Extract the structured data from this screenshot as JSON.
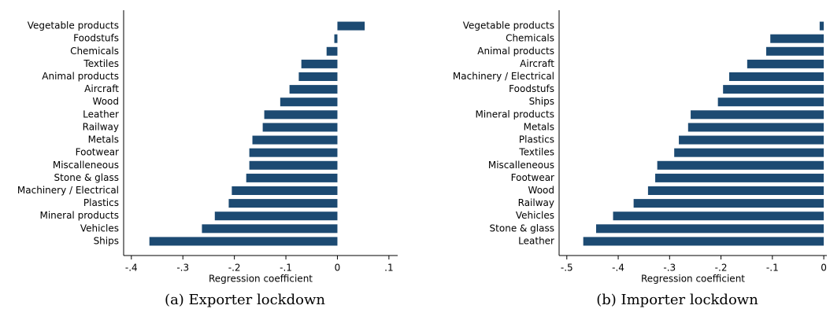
{
  "chart_data": [
    {
      "type": "barh",
      "caption": "(a) Exporter lockdown",
      "x_label": "Regression coefficient",
      "color": "#1c4a72",
      "categories": [
        "Vegetable products",
        "Foodstufs",
        "Chemicals",
        "Textiles",
        "Animal products",
        "Aircraft",
        "Wood",
        "Leather",
        "Railway",
        "Metals",
        "Footwear",
        "Miscalleneous",
        "Stone & glass",
        "Machinery / Electrical",
        "Plastics",
        "Mineral products",
        "Vehicles",
        "Ships"
      ],
      "values": [
        0.053,
        -0.006,
        -0.021,
        -0.07,
        -0.075,
        -0.093,
        -0.111,
        -0.142,
        -0.145,
        -0.165,
        -0.171,
        -0.171,
        -0.177,
        -0.205,
        -0.211,
        -0.238,
        -0.263,
        -0.365
      ],
      "xlim": [
        -0.415,
        0.117
      ],
      "xticks": [
        {
          "value": -0.4,
          "label": "-.4"
        },
        {
          "value": -0.3,
          "label": "-.3"
        },
        {
          "value": -0.2,
          "label": "-.2"
        },
        {
          "value": -0.1,
          "label": "-.1"
        },
        0,
        {
          "value": 0.1,
          "label": ".1"
        }
      ]
    },
    {
      "type": "barh",
      "caption": "(b) Importer lockdown",
      "x_label": "Regression coefficient",
      "color": "#1c4a72",
      "categories": [
        "Vegetable products",
        "Chemicals",
        "Animal products",
        "Aircraft",
        "Machinery / Electrical",
        "Foodstufs",
        "Ships",
        "Mineral products",
        "Metals",
        "Plastics",
        "Textiles",
        "Miscalleneous",
        "Footwear",
        "Wood",
        "Railway",
        "Vehicles",
        "Stone & glass",
        "Leather"
      ],
      "values": [
        -0.008,
        -0.104,
        -0.112,
        -0.149,
        -0.184,
        -0.196,
        -0.206,
        -0.259,
        -0.264,
        -0.282,
        -0.291,
        -0.324,
        -0.328,
        -0.342,
        -0.37,
        -0.41,
        -0.443,
        -0.468
      ],
      "xlim": [
        -0.515,
        0.006
      ],
      "xticks": [
        {
          "value": -0.5,
          "label": "-.5"
        },
        {
          "value": -0.4,
          "label": "-.4"
        },
        {
          "value": -0.3,
          "label": "-.3"
        },
        {
          "value": -0.2,
          "label": "-.2"
        },
        {
          "value": -0.1,
          "label": "-.1"
        },
        0
      ]
    }
  ]
}
